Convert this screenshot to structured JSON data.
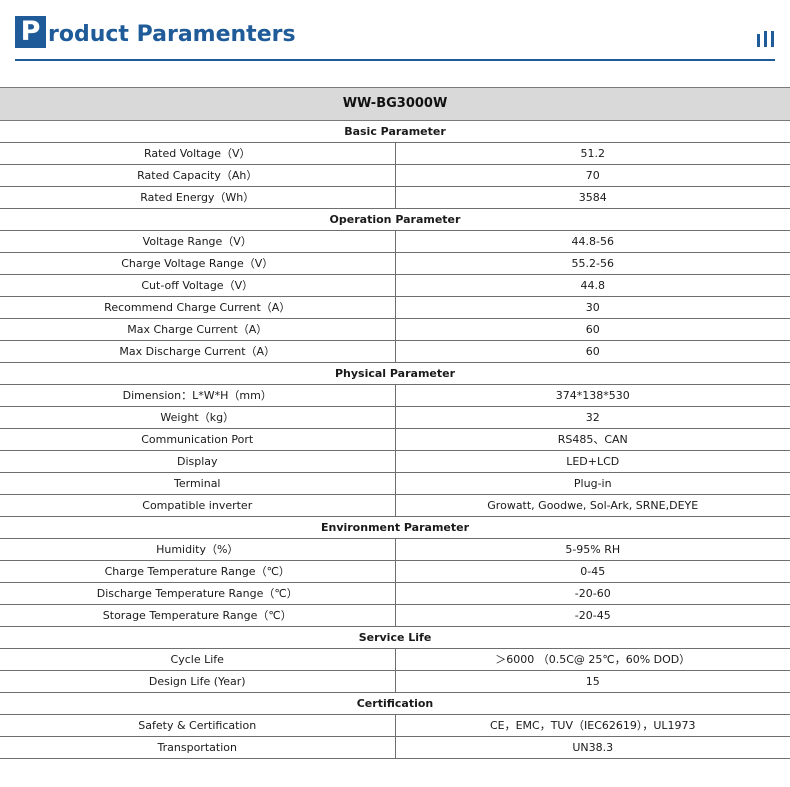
{
  "header": {
    "title_initial": "P",
    "title_rest": "roduct Paramenters",
    "decor_icon": "vertical-bars-icon",
    "accent_color": "#1f5b98"
  },
  "model": "WW-BG3000W",
  "sections": [
    {
      "title": "Basic Parameter",
      "rows": [
        {
          "label": "Rated Voltage（V）",
          "value": "51.2"
        },
        {
          "label": "Rated Capacity（Ah）",
          "value": "70"
        },
        {
          "label": "Rated Energy（Wh）",
          "value": "3584"
        }
      ]
    },
    {
      "title": "Operation Parameter",
      "rows": [
        {
          "label": "Voltage Range（V）",
          "value": "44.8-56"
        },
        {
          "label": "Charge Voltage Range（V）",
          "value": "55.2-56"
        },
        {
          "label": "Cut-off Voltage（V）",
          "value": "44.8"
        },
        {
          "label": "Recommend Charge Current（A）",
          "value": "30"
        },
        {
          "label": "Max Charge Current（A）",
          "value": "60"
        },
        {
          "label": "Max Discharge Current（A）",
          "value": "60"
        }
      ]
    },
    {
      "title": "Physical Parameter",
      "rows": [
        {
          "label": "Dimension：L*W*H（mm）",
          "value": "374*138*530"
        },
        {
          "label": "Weight（kg）",
          "value": "32"
        },
        {
          "label": "Communication Port",
          "value": "RS485、CAN"
        },
        {
          "label": "Display",
          "value": "LED+LCD"
        },
        {
          "label": "Terminal",
          "value": "Plug-in"
        },
        {
          "label": "Compatible inverter",
          "value": "Growatt, Goodwe, Sol-Ark, SRNE,DEYE"
        }
      ]
    },
    {
      "title": "Environment Parameter",
      "rows": [
        {
          "label": "Humidity（%）",
          "value": "5-95% RH"
        },
        {
          "label": "Charge Temperature Range（℃）",
          "value": "0-45"
        },
        {
          "label": "Discharge Temperature Range（℃）",
          "value": "-20-60"
        },
        {
          "label": "Storage Temperature Range（℃）",
          "value": "-20-45"
        }
      ]
    },
    {
      "title": "Service Life",
      "rows": [
        {
          "label": "Cycle Life",
          "value": "＞6000 （0.5C@ 25℃，60% DOD）"
        },
        {
          "label": "Design Life (Year)",
          "value": "15"
        }
      ]
    },
    {
      "title": "Certification",
      "rows": [
        {
          "label": "Safety & Certification",
          "value": "CE，EMC，TUV（IEC62619），UL1973"
        },
        {
          "label": "Transportation",
          "value": "UN38.3"
        }
      ]
    }
  ]
}
